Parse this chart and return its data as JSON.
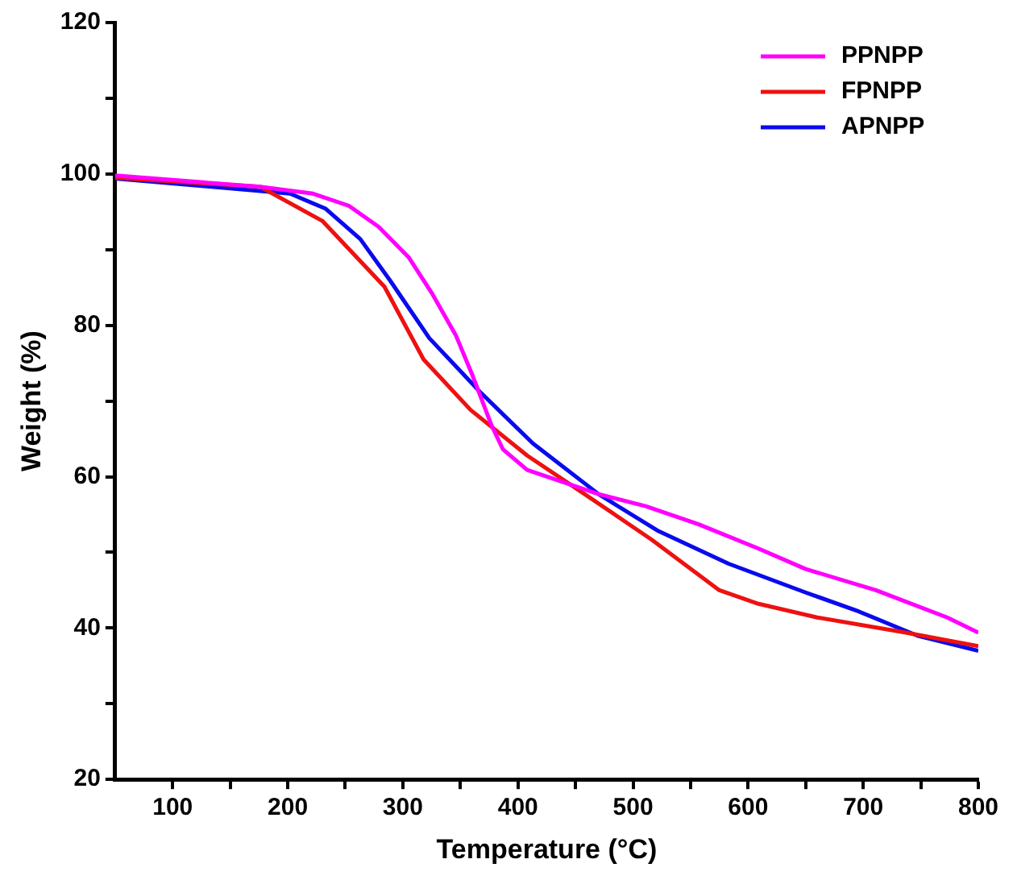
{
  "chart_data": {
    "type": "line",
    "xlabel": "Temperature (°C)",
    "ylabel": "Weight (%)",
    "xlim": [
      50,
      800
    ],
    "ylim": [
      20,
      120
    ],
    "xticks": [
      100,
      {
        "value": 150,
        "label": null
      },
      200,
      {
        "value": 250,
        "label": null
      },
      300,
      {
        "value": 350,
        "label": null
      },
      400,
      {
        "value": 450,
        "label": null
      },
      500,
      {
        "value": 550,
        "label": null
      },
      600,
      {
        "value": 650,
        "label": null
      },
      700,
      {
        "value": 750,
        "label": null
      },
      800
    ],
    "yticks": [
      20,
      {
        "value": 30,
        "label": null
      },
      40,
      {
        "value": 50,
        "label": null
      },
      60,
      {
        "value": 70,
        "label": null
      },
      80,
      {
        "value": 90,
        "label": null
      },
      100,
      {
        "value": 110,
        "label": null
      },
      120
    ],
    "grid": false,
    "legend": "top right",
    "marker": "none",
    "line_style": "solid",
    "series": [
      {
        "name": "PPNPP",
        "color": "#ff00ff",
        "x": [
          50,
          176,
          222,
          253,
          279,
          305,
          325,
          346,
          361,
          377,
          387,
          408,
          439,
          470,
          511,
          557,
          609,
          650,
          711,
          773,
          800
        ],
        "values": [
          99.8,
          98.3,
          97.4,
          95.8,
          93,
          89,
          84.3,
          78.7,
          73.2,
          66.8,
          63.6,
          60.9,
          59.3,
          57.7,
          56.1,
          53.7,
          50.5,
          47.8,
          45,
          41.4,
          39.4
        ]
      },
      {
        "name": "FPNPP",
        "color": "#ee1111",
        "x": [
          50,
          176,
          230,
          284,
          318,
          359,
          408,
          454,
          516,
          575,
          609,
          660,
          737,
          800
        ],
        "values": [
          99.5,
          98.3,
          93.8,
          85.1,
          75.5,
          68.8,
          62.8,
          58.1,
          51.7,
          45,
          43.2,
          41.4,
          39.4,
          37.6
        ]
      },
      {
        "name": "APNPP",
        "color": "#0a0aee",
        "x": [
          50,
          202,
          233,
          263,
          289,
          323,
          367,
          413,
          470,
          521,
          583,
          650,
          696,
          747,
          800
        ],
        "values": [
          99.4,
          97.4,
          95.4,
          91.4,
          85.9,
          78.3,
          71.2,
          64.4,
          57.7,
          52.9,
          48.5,
          44.7,
          42.2,
          39,
          37
        ]
      }
    ]
  }
}
